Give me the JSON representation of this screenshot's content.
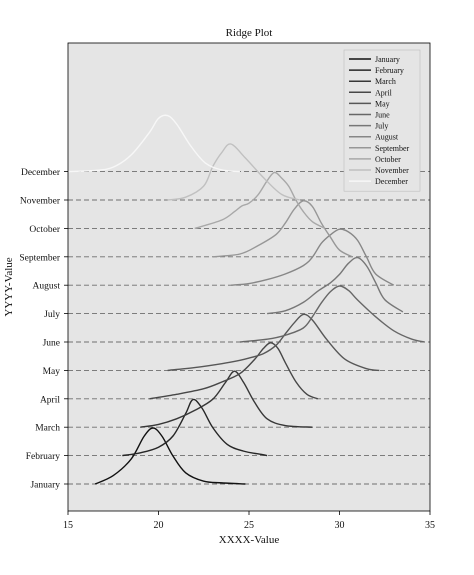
{
  "chart_data": {
    "type": "ridgeline",
    "title": "Ridge Plot",
    "xlabel": "XXXX-Value",
    "ylabel": "YYYY-Value",
    "xlim": [
      15,
      35
    ],
    "xticks": [
      15,
      20,
      25,
      30,
      35
    ],
    "grid": "dashed horizontal baselines",
    "legend_position": "top-right",
    "background": "#e5e5e5",
    "series": [
      {
        "name": "January",
        "color": "#111111",
        "x": [
          16.5,
          17.5,
          18.5,
          19.2,
          19.7,
          20.2,
          20.8,
          21.5,
          22.5,
          23.5,
          24.8
        ],
        "y": [
          0.0,
          0.15,
          0.45,
          0.85,
          1.0,
          0.85,
          0.5,
          0.2,
          0.05,
          0.02,
          0.0
        ]
      },
      {
        "name": "February",
        "color": "#262626",
        "x": [
          18.0,
          19.0,
          20.0,
          20.8,
          21.5,
          21.9,
          22.4,
          23.0,
          23.8,
          24.7,
          25.7,
          26.0
        ],
        "y": [
          0.0,
          0.05,
          0.15,
          0.35,
          0.75,
          1.0,
          0.85,
          0.5,
          0.2,
          0.08,
          0.02,
          0.0
        ]
      },
      {
        "name": "March",
        "color": "#373737",
        "x": [
          19.0,
          20.0,
          21.0,
          22.0,
          23.0,
          23.7,
          24.2,
          24.7,
          25.3,
          26.0,
          27.0,
          28.5
        ],
        "y": [
          0.0,
          0.05,
          0.15,
          0.3,
          0.5,
          0.8,
          1.0,
          0.8,
          0.45,
          0.15,
          0.03,
          0.0
        ]
      },
      {
        "name": "April",
        "color": "#474747",
        "x": [
          19.5,
          21.0,
          22.5,
          23.5,
          24.5,
          25.3,
          25.8,
          26.2,
          26.6,
          27.0,
          27.6,
          28.2,
          28.8
        ],
        "y": [
          0.0,
          0.08,
          0.18,
          0.3,
          0.45,
          0.7,
          0.9,
          1.0,
          0.9,
          0.65,
          0.3,
          0.08,
          0.0
        ]
      },
      {
        "name": "May",
        "color": "#575757",
        "x": [
          20.5,
          22.0,
          23.5,
          24.5,
          25.0,
          25.8,
          26.5,
          27.0,
          27.5,
          28.0,
          28.5,
          29.3,
          30.3,
          31.5,
          32.2
        ],
        "y": [
          0.0,
          0.05,
          0.12,
          0.18,
          0.22,
          0.3,
          0.45,
          0.65,
          0.85,
          1.0,
          0.9,
          0.55,
          0.2,
          0.03,
          0.0
        ]
      },
      {
        "name": "June",
        "color": "#676767",
        "x": [
          24.5,
          26.0,
          27.0,
          28.0,
          28.5,
          29.0,
          29.5,
          30.0,
          30.5,
          31.0,
          32.0,
          33.0,
          34.0,
          34.7
        ],
        "y": [
          0.0,
          0.05,
          0.12,
          0.25,
          0.45,
          0.7,
          0.9,
          1.0,
          0.92,
          0.75,
          0.45,
          0.2,
          0.05,
          0.0
        ]
      },
      {
        "name": "July",
        "color": "#777777",
        "x": [
          26.0,
          27.0,
          28.0,
          28.8,
          29.5,
          30.0,
          30.5,
          31.0,
          31.5,
          32.0,
          32.5,
          33.5
        ],
        "y": [
          0.0,
          0.05,
          0.2,
          0.4,
          0.55,
          0.7,
          0.9,
          1.0,
          0.85,
          0.55,
          0.25,
          0.03
        ]
      },
      {
        "name": "August",
        "color": "#878787",
        "x": [
          24.0,
          25.0,
          26.0,
          27.0,
          28.0,
          28.5,
          29.0,
          29.5,
          30.0,
          30.5,
          31.0,
          31.5,
          32.0,
          33.0
        ],
        "y": [
          0.0,
          0.03,
          0.1,
          0.2,
          0.35,
          0.5,
          0.75,
          0.9,
          1.0,
          0.95,
          0.8,
          0.5,
          0.2,
          0.0
        ]
      },
      {
        "name": "September",
        "color": "#979797",
        "x": [
          23.0,
          24.5,
          25.5,
          26.5,
          27.0,
          27.5,
          28.0,
          28.5,
          29.0,
          29.5,
          30.0,
          30.7
        ],
        "y": [
          0.0,
          0.05,
          0.2,
          0.4,
          0.6,
          0.85,
          1.0,
          0.9,
          0.6,
          0.35,
          0.12,
          0.0
        ]
      },
      {
        "name": "October",
        "color": "#a8a8a8",
        "x": [
          22.0,
          23.5,
          24.2,
          24.6,
          25.0,
          25.5,
          26.0,
          26.4,
          26.8,
          27.2,
          27.6,
          28.0,
          28.5,
          29.2
        ],
        "y": [
          0.0,
          0.15,
          0.3,
          0.4,
          0.45,
          0.6,
          0.85,
          1.0,
          0.9,
          0.75,
          0.5,
          0.3,
          0.12,
          0.0
        ]
      },
      {
        "name": "November",
        "color": "#c0c0c0",
        "x": [
          20.5,
          21.5,
          22.5,
          23.0,
          23.5,
          24.0,
          24.8,
          25.8,
          26.8,
          27.8
        ],
        "y": [
          0.0,
          0.05,
          0.25,
          0.6,
          0.85,
          1.0,
          0.75,
          0.4,
          0.1,
          0.0
        ]
      },
      {
        "name": "December",
        "color": "#f7f7f7",
        "x": [
          15.0,
          16.5,
          17.5,
          18.5,
          19.5,
          20.0,
          20.5,
          21.0,
          21.8,
          22.6,
          23.5,
          24.5
        ],
        "y": [
          0.0,
          0.02,
          0.08,
          0.3,
          0.7,
          0.95,
          1.0,
          0.85,
          0.45,
          0.15,
          0.03,
          0.0
        ]
      }
    ]
  }
}
